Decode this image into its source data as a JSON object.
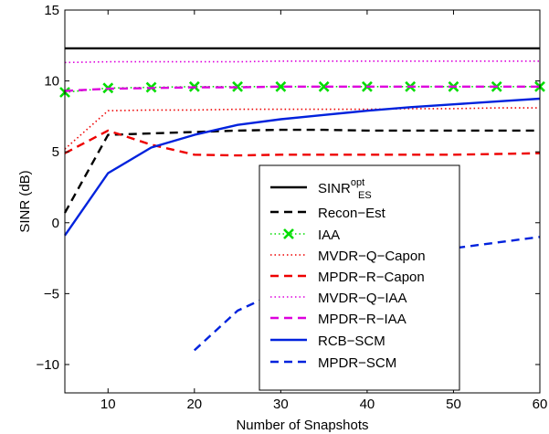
{
  "chart_data": {
    "type": "line",
    "xlabel": "Number of Snapshots",
    "ylabel": "SINR (dB)",
    "xlim": [
      5,
      60
    ],
    "ylim": [
      -12,
      15
    ],
    "xticks": [
      "10",
      "20",
      "30",
      "40",
      "50",
      "60"
    ],
    "yticks": [
      "−10",
      "−5",
      "0",
      "5",
      "10",
      "15"
    ],
    "grid": false,
    "legend_position": "bottom-center",
    "x": [
      5,
      10,
      15,
      20,
      25,
      30,
      35,
      40,
      45,
      50,
      55,
      60
    ],
    "series": [
      {
        "name": "SINR",
        "name_sup": "opt",
        "name_sub": "ES",
        "color": "#000000",
        "dash": "solid",
        "marker": "none",
        "values": [
          12.3,
          12.3,
          12.3,
          12.3,
          12.3,
          12.3,
          12.3,
          12.3,
          12.3,
          12.3,
          12.3,
          12.3
        ]
      },
      {
        "name": "Recon−Est",
        "color": "#000000",
        "dash": "dashed",
        "marker": "none",
        "values": [
          0.7,
          6.2,
          6.3,
          6.4,
          6.5,
          6.55,
          6.55,
          6.5,
          6.5,
          6.5,
          6.5,
          6.5
        ]
      },
      {
        "name": "IAA",
        "color": "#00dd00",
        "dash": "dotted",
        "marker": "x",
        "values": [
          9.2,
          9.5,
          9.55,
          9.6,
          9.6,
          9.6,
          9.6,
          9.6,
          9.6,
          9.6,
          9.6,
          9.6
        ]
      },
      {
        "name": "MVDR−Q−Capon",
        "color": "#ee0000",
        "dash": "dotted",
        "marker": "none",
        "values": [
          5.2,
          7.9,
          7.95,
          7.95,
          8.0,
          8.0,
          8.0,
          8.0,
          8.05,
          8.05,
          8.1,
          8.1
        ]
      },
      {
        "name": "MPDR−R−Capon",
        "color": "#ee0000",
        "dash": "dashed",
        "marker": "none",
        "values": [
          4.9,
          6.5,
          5.5,
          4.8,
          4.75,
          4.8,
          4.8,
          4.8,
          4.8,
          4.8,
          4.85,
          4.9
        ]
      },
      {
        "name": "MVDR−Q−IAA",
        "color": "#dd00dd",
        "dash": "dotted",
        "marker": "none",
        "values": [
          11.3,
          11.35,
          11.35,
          11.35,
          11.35,
          11.4,
          11.4,
          11.4,
          11.4,
          11.4,
          11.4,
          11.4
        ]
      },
      {
        "name": "MPDR−R−IAA",
        "color": "#dd00dd",
        "dash": "dashed",
        "marker": "none",
        "values": [
          9.3,
          9.45,
          9.5,
          9.55,
          9.55,
          9.6,
          9.6,
          9.6,
          9.6,
          9.6,
          9.6,
          9.6
        ]
      },
      {
        "name": "RCB−SCM",
        "color": "#0022dd",
        "dash": "solid",
        "marker": "none",
        "values": [
          -0.9,
          3.5,
          5.3,
          6.2,
          6.9,
          7.3,
          7.6,
          7.9,
          8.15,
          8.35,
          8.55,
          8.75
        ]
      },
      {
        "name": "MPDR−SCM",
        "color": "#0022dd",
        "dash": "dashed",
        "marker": "none",
        "x": [
          20,
          25,
          30,
          35,
          40,
          45,
          50,
          55,
          60
        ],
        "values": [
          -9.0,
          -6.2,
          -4.8,
          -3.8,
          -3.0,
          -2.3,
          -1.8,
          -1.4,
          -1.0
        ]
      }
    ]
  }
}
